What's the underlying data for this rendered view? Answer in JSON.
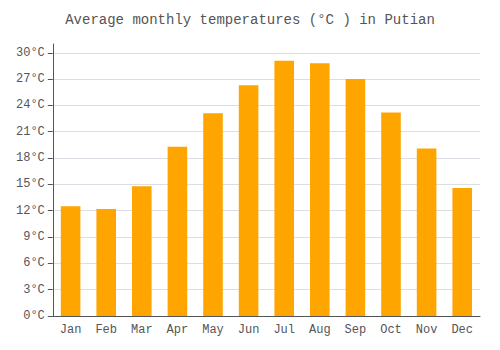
{
  "chart_data": {
    "type": "bar",
    "title": "Average monthly temperatures (°C ) in Putian",
    "categories": [
      "Jan",
      "Feb",
      "Mar",
      "Apr",
      "May",
      "Jun",
      "Jul",
      "Aug",
      "Sep",
      "Oct",
      "Nov",
      "Dec"
    ],
    "values": [
      12.5,
      12.2,
      14.8,
      19.3,
      23.1,
      26.3,
      29.1,
      28.8,
      27.0,
      23.2,
      19.1,
      14.6
    ],
    "color": "#FFA500",
    "ylim": [
      0,
      31
    ],
    "yticks": [
      {
        "value": 0,
        "label": "0°C"
      },
      {
        "value": 3,
        "label": "3°C"
      },
      {
        "value": 6,
        "label": "6°C"
      },
      {
        "value": 9,
        "label": "9°C"
      },
      {
        "value": 12,
        "label": "12°C"
      },
      {
        "value": 15,
        "label": "15°C"
      },
      {
        "value": 18,
        "label": "18°C"
      },
      {
        "value": 21,
        "label": "21°C"
      },
      {
        "value": 24,
        "label": "24°C"
      },
      {
        "value": 27,
        "label": "27°C"
      },
      {
        "value": 30,
        "label": "30°C"
      }
    ],
    "grid": true
  }
}
